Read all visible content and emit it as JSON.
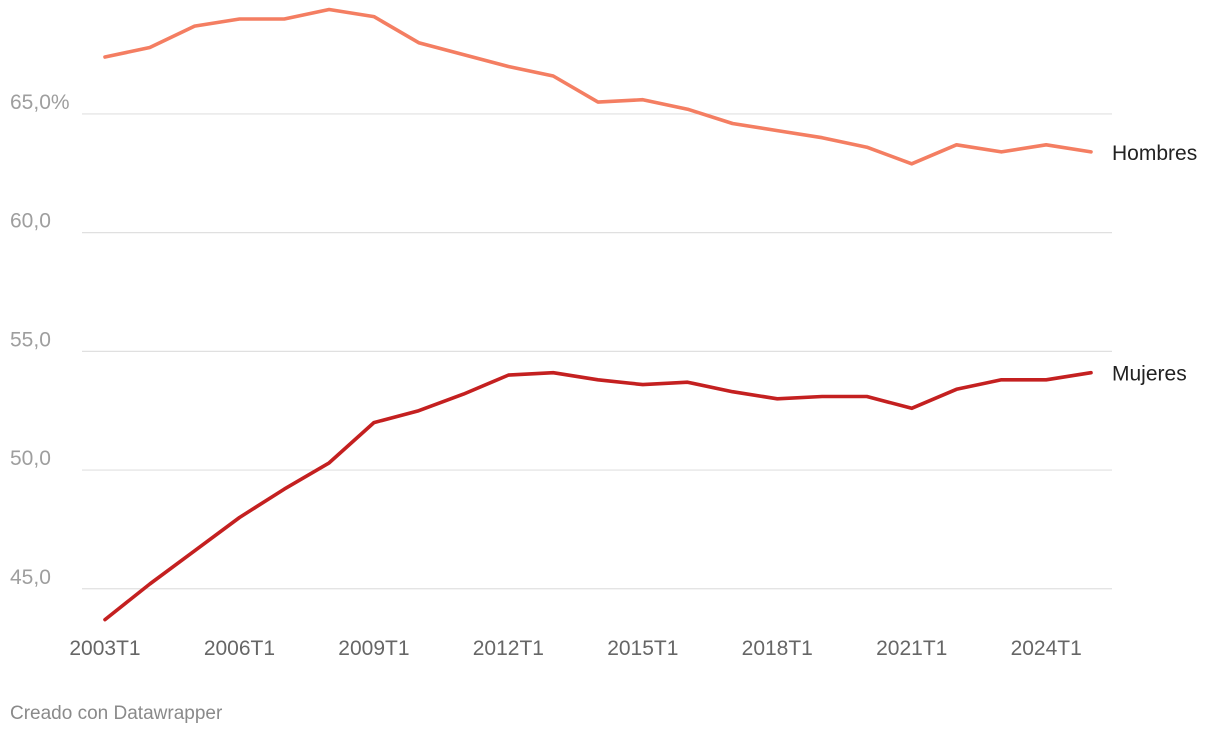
{
  "chart_data": {
    "type": "line",
    "y_ticks": [
      45,
      50,
      55,
      60,
      65
    ],
    "y_tick_labels": [
      "45,0",
      "50,0",
      "55,0",
      "60,0",
      "65,0%"
    ],
    "ylim": [
      43.6,
      69.8
    ],
    "x": [
      "2003T1",
      "2004T1",
      "2005T1",
      "2006T1",
      "2007T1",
      "2008T1",
      "2009T1",
      "2010T1",
      "2011T1",
      "2012T1",
      "2013T1",
      "2014T1",
      "2015T1",
      "2016T1",
      "2017T1",
      "2018T1",
      "2019T1",
      "2020T1",
      "2021T1",
      "2022T1",
      "2023T1",
      "2024T1",
      "2025T1"
    ],
    "x_tick_labels": [
      "2003T1",
      "2006T1",
      "2009T1",
      "2012T1",
      "2015T1",
      "2018T1",
      "2021T1",
      "2024T1"
    ],
    "series": [
      {
        "name": "Hombres",
        "color": "#f47e62",
        "values": [
          67.4,
          67.8,
          68.7,
          69.0,
          69.0,
          69.4,
          69.1,
          68.0,
          67.5,
          67.0,
          66.6,
          65.5,
          65.6,
          65.2,
          64.6,
          64.3,
          64.0,
          63.6,
          62.9,
          63.7,
          63.4,
          63.7,
          63.4
        ]
      },
      {
        "name": "Mujeres",
        "color": "#c42020",
        "values": [
          43.7,
          45.2,
          46.6,
          48.0,
          49.2,
          50.3,
          52.0,
          52.5,
          53.2,
          54.0,
          54.1,
          53.8,
          53.6,
          53.7,
          53.3,
          53.0,
          53.1,
          53.1,
          52.6,
          53.4,
          53.8,
          53.8,
          54.1
        ]
      }
    ],
    "grid": true,
    "gridline_color": "#e0e0e0"
  },
  "footer": "Creado con Datawrapper"
}
